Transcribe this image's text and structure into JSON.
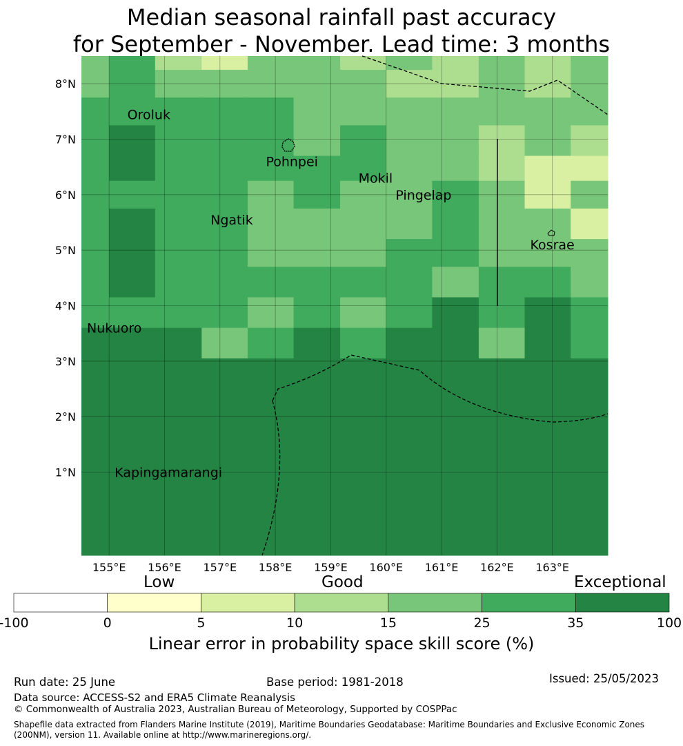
{
  "title_line1": "Median seasonal rainfall past accuracy",
  "title_line2": "for September - November. Lead time: 3 months",
  "map": {
    "lon_range": [
      154.5,
      164.0
    ],
    "lat_range": [
      -0.5,
      8.5
    ],
    "x_ticks": [
      {
        "value": 155,
        "label": "155°E"
      },
      {
        "value": 156,
        "label": "156°E"
      },
      {
        "value": 157,
        "label": "157°E"
      },
      {
        "value": 158,
        "label": "158°E"
      },
      {
        "value": 159,
        "label": "159°E"
      },
      {
        "value": 160,
        "label": "160°E"
      },
      {
        "value": 161,
        "label": "161°E"
      },
      {
        "value": 162,
        "label": "162°E"
      },
      {
        "value": 163,
        "label": "163°E"
      }
    ],
    "y_ticks": [
      {
        "value": 1,
        "label": "1°N"
      },
      {
        "value": 2,
        "label": "2°N"
      },
      {
        "value": 3,
        "label": "3°N"
      },
      {
        "value": 4,
        "label": "4°N"
      },
      {
        "value": 5,
        "label": "5°N"
      },
      {
        "value": 6,
        "label": "6°N"
      },
      {
        "value": 7,
        "label": "7°N"
      },
      {
        "value": 8,
        "label": "8°N"
      }
    ],
    "grid_columns_lon_edges": [
      154.5,
      155.0,
      155.83,
      156.67,
      157.5,
      158.33,
      159.17,
      160.0,
      160.83,
      161.67,
      162.5,
      163.33,
      164.0
    ],
    "grid_rows_lat_edges_top_to_bottom": [
      8.5,
      8.25,
      7.75,
      7.25,
      6.7,
      6.25,
      5.75,
      5.2,
      4.7,
      4.15,
      3.6,
      3.05,
      2.5,
      -0.5
    ],
    "skill_category_grid": [
      [
        4,
        5,
        3,
        2,
        4,
        4,
        3,
        4,
        3,
        4,
        3,
        4
      ],
      [
        4,
        5,
        4,
        4,
        4,
        4,
        4,
        3,
        3,
        4,
        3,
        4
      ],
      [
        5,
        5,
        5,
        5,
        5,
        4,
        4,
        4,
        4,
        4,
        4,
        4
      ],
      [
        5,
        6,
        5,
        5,
        5,
        4,
        5,
        4,
        4,
        3,
        4,
        3
      ],
      [
        5,
        6,
        5,
        5,
        5,
        5,
        5,
        4,
        4,
        3,
        2,
        2
      ],
      [
        5,
        5,
        5,
        5,
        4,
        5,
        4,
        4,
        5,
        4,
        2,
        4
      ],
      [
        5,
        6,
        5,
        5,
        4,
        4,
        4,
        4,
        5,
        4,
        4,
        2
      ],
      [
        5,
        6,
        5,
        5,
        4,
        4,
        4,
        5,
        5,
        4,
        4,
        4
      ],
      [
        5,
        6,
        5,
        5,
        5,
        5,
        5,
        5,
        4,
        5,
        5,
        4
      ],
      [
        5,
        5,
        5,
        5,
        4,
        5,
        4,
        5,
        6,
        5,
        6,
        5
      ],
      [
        6,
        6,
        6,
        4,
        5,
        6,
        5,
        6,
        6,
        4,
        6,
        5
      ],
      [
        6,
        6,
        6,
        6,
        6,
        6,
        6,
        6,
        6,
        6,
        6,
        6
      ],
      [
        6,
        6,
        6,
        6,
        6,
        6,
        6,
        6,
        6,
        6,
        6,
        6
      ]
    ],
    "place_labels": [
      {
        "name": "Oroluk",
        "lon": 155.33,
        "lat": 7.45
      },
      {
        "name": "Pohnpei",
        "lon": 157.83,
        "lat": 6.6
      },
      {
        "name": "Mokil",
        "lon": 159.5,
        "lat": 6.3
      },
      {
        "name": "Pingelap",
        "lon": 160.17,
        "lat": 6.0
      },
      {
        "name": "Ngatik",
        "lon": 156.83,
        "lat": 5.55
      },
      {
        "name": "Kosrae",
        "lon": 162.6,
        "lat": 5.1
      },
      {
        "name": "Nukuoro",
        "lon": 154.6,
        "lat": 3.6
      },
      {
        "name": "Kapingamarangi",
        "lon": 155.1,
        "lat": 1.0
      }
    ]
  },
  "colorbar": {
    "category_colors": [
      "#ffffff",
      "#ffffcc",
      "#d9f0a3",
      "#addd8e",
      "#78c679",
      "#41ab5d",
      "#238443"
    ],
    "boundaries": [
      "-100",
      "0",
      "5",
      "10",
      "15",
      "25",
      "35",
      "100"
    ],
    "heading_low": "Low",
    "heading_good": "Good",
    "heading_exceptional": "Exceptional",
    "label": "Linear error in probability space skill score (%)"
  },
  "footer": {
    "run_date": "Run date: 25 June",
    "base_period": "Base period: 1981-2018",
    "issued": "Issued: 25/05/2023",
    "data_source": "Data source: ACCESS-S2 and ERA5 Climate Reanalysis",
    "copyright": "© Commonwealth of Australia 2023, Australian Bureau of Meteorology, Supported by COSPPac",
    "shapefile_line1": "Shapefile data extracted from Flanders Marine Institute (2019), Maritime Boundaries Geodatabase: Maritime Boundaries and Exclusive Economic Zones",
    "shapefile_line2": "(200NM), version 11. Available online at http://www.marineregions.org/."
  }
}
